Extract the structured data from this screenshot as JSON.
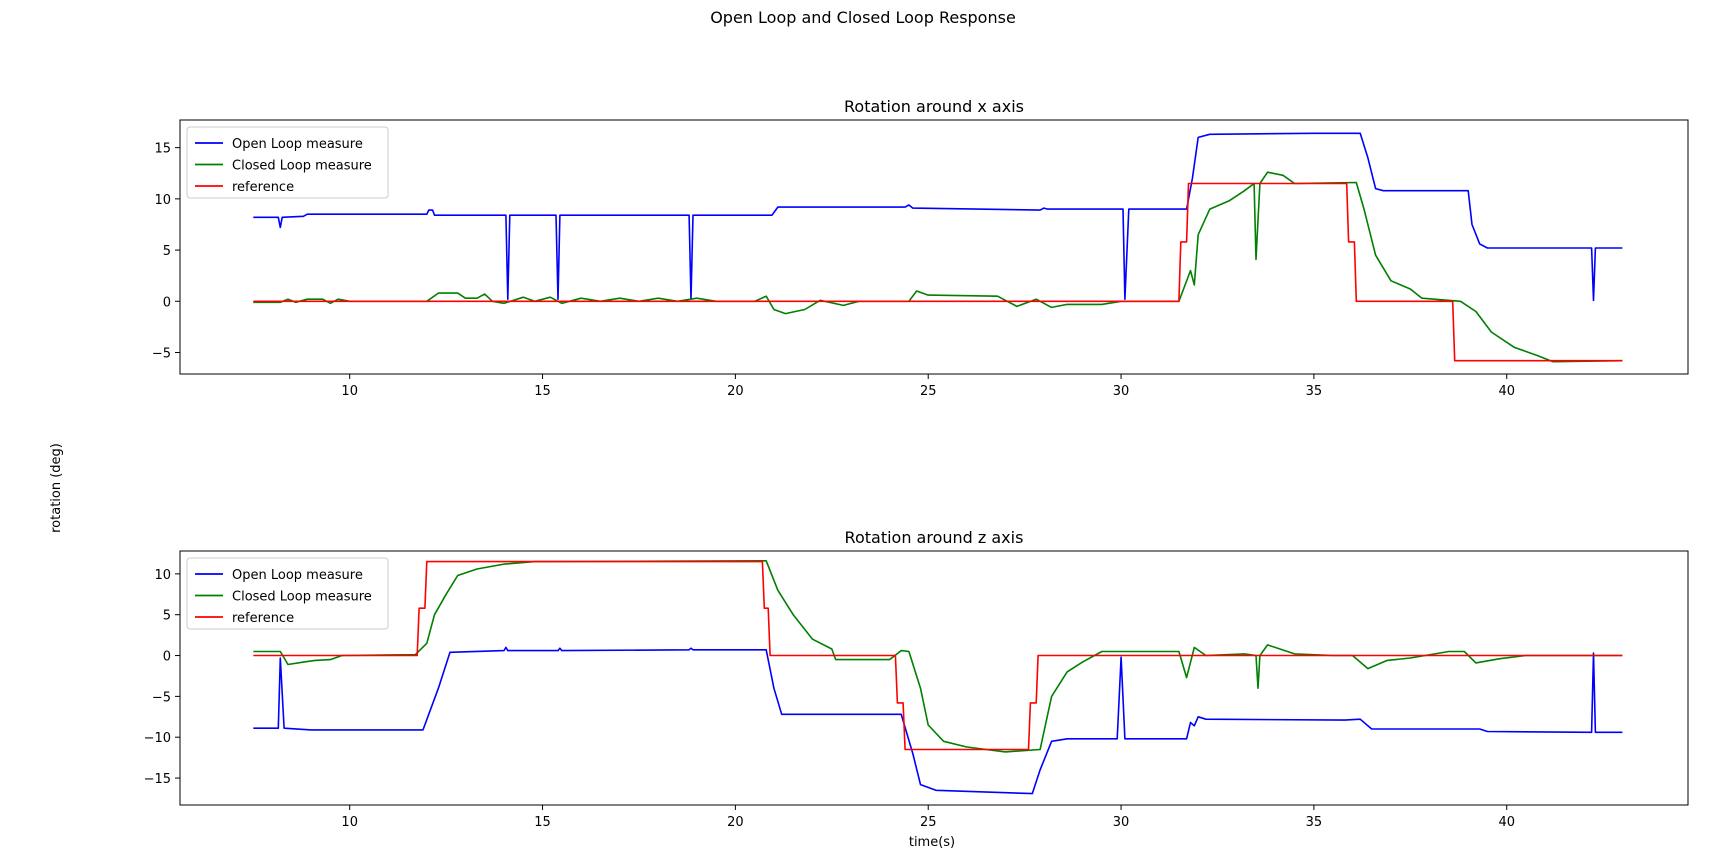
{
  "figure": {
    "suptitle": "Open Loop and Closed Loop Response",
    "shared_ylabel": "rotation (deg)",
    "shared_xlabel": "time(s)"
  },
  "legend": {
    "placement": "top-left",
    "entries": [
      {
        "label": "Open Loop measure",
        "color": "#0000ff"
      },
      {
        "label": "Closed Loop measure",
        "color": "#008000"
      },
      {
        "label": "reference",
        "color": "#ff0000"
      }
    ]
  },
  "chart_data": [
    {
      "type": "line",
      "title": "Rotation around x axis",
      "xlim": [
        5.6,
        44.7
      ],
      "ylim": [
        -7.1,
        17.7
      ],
      "xticks": [
        10,
        15,
        20,
        25,
        30,
        35,
        40
      ],
      "yticks": [
        -5,
        0,
        5,
        10,
        15
      ],
      "grid": false,
      "series": [
        {
          "name": "Open Loop measure",
          "color": "#0000ff",
          "points": [
            [
              7.5,
              8.2
            ],
            [
              8.15,
              8.2
            ],
            [
              8.2,
              7.2
            ],
            [
              8.25,
              8.2
            ],
            [
              8.8,
              8.3
            ],
            [
              8.9,
              8.5
            ],
            [
              12.0,
              8.5
            ],
            [
              12.05,
              8.9
            ],
            [
              12.15,
              8.9
            ],
            [
              12.2,
              8.4
            ],
            [
              14.05,
              8.4
            ],
            [
              14.1,
              0.2
            ],
            [
              14.15,
              8.4
            ],
            [
              15.35,
              8.4
            ],
            [
              15.4,
              0.2
            ],
            [
              15.45,
              8.4
            ],
            [
              18.8,
              8.4
            ],
            [
              18.85,
              0.2
            ],
            [
              18.9,
              8.4
            ],
            [
              20.95,
              8.4
            ],
            [
              21.1,
              9.2
            ],
            [
              24.4,
              9.2
            ],
            [
              24.5,
              9.4
            ],
            [
              24.6,
              9.1
            ],
            [
              27.9,
              8.9
            ],
            [
              28.0,
              9.1
            ],
            [
              28.1,
              9.0
            ],
            [
              30.05,
              9.0
            ],
            [
              30.1,
              0.2
            ],
            [
              30.2,
              9.0
            ],
            [
              31.7,
              9.0
            ],
            [
              31.85,
              12.0
            ],
            [
              32.0,
              16.0
            ],
            [
              32.3,
              16.3
            ],
            [
              35.0,
              16.4
            ],
            [
              36.2,
              16.4
            ],
            [
              36.4,
              14.0
            ],
            [
              36.6,
              11.0
            ],
            [
              36.8,
              10.8
            ],
            [
              39.0,
              10.8
            ],
            [
              39.1,
              7.5
            ],
            [
              39.3,
              5.6
            ],
            [
              39.5,
              5.2
            ],
            [
              42.2,
              5.2
            ],
            [
              42.25,
              0.1
            ],
            [
              42.3,
              5.2
            ],
            [
              43.0,
              5.2
            ]
          ]
        },
        {
          "name": "Closed Loop measure",
          "color": "#008000",
          "points": [
            [
              7.5,
              -0.1
            ],
            [
              8.2,
              -0.1
            ],
            [
              8.4,
              0.2
            ],
            [
              8.6,
              -0.1
            ],
            [
              8.9,
              0.2
            ],
            [
              9.3,
              0.2
            ],
            [
              9.5,
              -0.2
            ],
            [
              9.7,
              0.2
            ],
            [
              10.0,
              0.0
            ],
            [
              12.0,
              0.0
            ],
            [
              12.3,
              0.8
            ],
            [
              12.8,
              0.8
            ],
            [
              13.0,
              0.3
            ],
            [
              13.3,
              0.3
            ],
            [
              13.5,
              0.7
            ],
            [
              13.7,
              0.0
            ],
            [
              14.0,
              -0.2
            ],
            [
              14.5,
              0.4
            ],
            [
              14.8,
              0.0
            ],
            [
              15.2,
              0.4
            ],
            [
              15.5,
              -0.2
            ],
            [
              16.0,
              0.3
            ],
            [
              16.5,
              0.0
            ],
            [
              17.0,
              0.3
            ],
            [
              17.5,
              0.0
            ],
            [
              18.0,
              0.3
            ],
            [
              18.5,
              0.0
            ],
            [
              19.0,
              0.3
            ],
            [
              19.5,
              0.0
            ],
            [
              20.5,
              0.0
            ],
            [
              20.8,
              0.5
            ],
            [
              21.0,
              -0.8
            ],
            [
              21.3,
              -1.2
            ],
            [
              21.8,
              -0.8
            ],
            [
              22.2,
              0.1
            ],
            [
              22.8,
              -0.4
            ],
            [
              23.2,
              0.0
            ],
            [
              24.5,
              0.0
            ],
            [
              24.7,
              1.0
            ],
            [
              25.0,
              0.6
            ],
            [
              26.8,
              0.5
            ],
            [
              27.3,
              -0.5
            ],
            [
              27.8,
              0.2
            ],
            [
              28.2,
              -0.6
            ],
            [
              28.6,
              -0.3
            ],
            [
              29.5,
              -0.3
            ],
            [
              30.0,
              0.0
            ],
            [
              31.5,
              0.0
            ],
            [
              31.8,
              3.0
            ],
            [
              31.9,
              1.6
            ],
            [
              32.0,
              6.5
            ],
            [
              32.3,
              9.0
            ],
            [
              32.8,
              9.8
            ],
            [
              33.2,
              10.8
            ],
            [
              33.45,
              11.5
            ],
            [
              33.5,
              4.1
            ],
            [
              33.6,
              11.5
            ],
            [
              33.8,
              12.6
            ],
            [
              34.2,
              12.3
            ],
            [
              34.5,
              11.5
            ],
            [
              36.1,
              11.6
            ],
            [
              36.3,
              9.0
            ],
            [
              36.6,
              4.5
            ],
            [
              37.0,
              2.0
            ],
            [
              37.5,
              1.2
            ],
            [
              37.8,
              0.3
            ],
            [
              38.8,
              0.0
            ],
            [
              39.2,
              -1.0
            ],
            [
              39.6,
              -3.0
            ],
            [
              40.2,
              -4.5
            ],
            [
              40.8,
              -5.3
            ],
            [
              41.2,
              -5.9
            ],
            [
              43.0,
              -5.8
            ]
          ]
        },
        {
          "name": "reference",
          "color": "#ff0000",
          "points": [
            [
              7.5,
              0.0
            ],
            [
              31.5,
              0.0
            ],
            [
              31.55,
              5.8
            ],
            [
              31.7,
              5.8
            ],
            [
              31.75,
              11.5
            ],
            [
              35.85,
              11.5
            ],
            [
              35.9,
              5.8
            ],
            [
              36.05,
              5.8
            ],
            [
              36.1,
              0.0
            ],
            [
              38.6,
              0.0
            ],
            [
              38.65,
              -5.8
            ],
            [
              43.0,
              -5.8
            ]
          ]
        }
      ]
    },
    {
      "type": "line",
      "title": "Rotation around z axis",
      "xlim": [
        5.6,
        44.7
      ],
      "ylim": [
        -18.3,
        12.8
      ],
      "xticks": [
        10,
        15,
        20,
        25,
        30,
        35,
        40
      ],
      "yticks": [
        -15,
        -10,
        -5,
        0,
        5,
        10
      ],
      "grid": false,
      "series": [
        {
          "name": "Open Loop measure",
          "color": "#0000ff",
          "points": [
            [
              7.5,
              -8.9
            ],
            [
              8.15,
              -8.9
            ],
            [
              8.2,
              -0.3
            ],
            [
              8.3,
              -8.9
            ],
            [
              9.0,
              -9.1
            ],
            [
              11.9,
              -9.1
            ],
            [
              12.3,
              -4.0
            ],
            [
              12.6,
              0.4
            ],
            [
              14.0,
              0.6
            ],
            [
              14.05,
              1.0
            ],
            [
              14.1,
              0.6
            ],
            [
              15.4,
              0.6
            ],
            [
              15.45,
              0.9
            ],
            [
              15.5,
              0.6
            ],
            [
              18.8,
              0.7
            ],
            [
              18.85,
              0.9
            ],
            [
              18.9,
              0.7
            ],
            [
              20.8,
              0.7
            ],
            [
              21.0,
              -4.0
            ],
            [
              21.2,
              -7.2
            ],
            [
              24.3,
              -7.2
            ],
            [
              24.6,
              -12.0
            ],
            [
              24.8,
              -15.8
            ],
            [
              25.2,
              -16.5
            ],
            [
              27.7,
              -16.9
            ],
            [
              27.9,
              -14.0
            ],
            [
              28.2,
              -10.5
            ],
            [
              28.6,
              -10.2
            ],
            [
              29.9,
              -10.2
            ],
            [
              30.0,
              -0.2
            ],
            [
              30.1,
              -10.2
            ],
            [
              31.7,
              -10.2
            ],
            [
              31.8,
              -8.2
            ],
            [
              31.9,
              -8.6
            ],
            [
              32.0,
              -7.5
            ],
            [
              32.2,
              -7.8
            ],
            [
              35.8,
              -7.9
            ],
            [
              36.2,
              -7.8
            ],
            [
              36.5,
              -9.0
            ],
            [
              39.3,
              -9.0
            ],
            [
              39.5,
              -9.3
            ],
            [
              42.2,
              -9.4
            ],
            [
              42.25,
              0.3
            ],
            [
              42.3,
              -9.4
            ],
            [
              43.0,
              -9.4
            ]
          ]
        },
        {
          "name": "Closed Loop measure",
          "color": "#008000",
          "points": [
            [
              7.5,
              0.5
            ],
            [
              8.2,
              0.5
            ],
            [
              8.4,
              -1.1
            ],
            [
              8.8,
              -0.8
            ],
            [
              9.1,
              -0.6
            ],
            [
              9.5,
              -0.5
            ],
            [
              9.8,
              0.0
            ],
            [
              11.7,
              0.1
            ],
            [
              12.0,
              1.5
            ],
            [
              12.2,
              5.0
            ],
            [
              12.5,
              7.5
            ],
            [
              12.8,
              9.8
            ],
            [
              13.3,
              10.6
            ],
            [
              14.0,
              11.2
            ],
            [
              14.8,
              11.5
            ],
            [
              20.8,
              11.6
            ],
            [
              21.1,
              8.0
            ],
            [
              21.5,
              5.0
            ],
            [
              22.0,
              2.0
            ],
            [
              22.5,
              0.8
            ],
            [
              22.6,
              -0.5
            ],
            [
              24.0,
              -0.5
            ],
            [
              24.3,
              0.6
            ],
            [
              24.5,
              0.5
            ],
            [
              24.8,
              -4.0
            ],
            [
              25.0,
              -8.5
            ],
            [
              25.4,
              -10.5
            ],
            [
              26.0,
              -11.2
            ],
            [
              27.0,
              -11.8
            ],
            [
              27.9,
              -11.5
            ],
            [
              28.2,
              -5.0
            ],
            [
              28.6,
              -2.0
            ],
            [
              29.0,
              -0.8
            ],
            [
              29.5,
              0.5
            ],
            [
              31.5,
              0.5
            ],
            [
              31.7,
              -2.7
            ],
            [
              31.9,
              1.0
            ],
            [
              32.2,
              0.0
            ],
            [
              33.2,
              0.2
            ],
            [
              33.5,
              0.0
            ],
            [
              33.55,
              -4.0
            ],
            [
              33.6,
              0.0
            ],
            [
              33.8,
              1.3
            ],
            [
              34.5,
              0.2
            ],
            [
              35.5,
              0.0
            ],
            [
              36.0,
              0.0
            ],
            [
              36.4,
              -1.6
            ],
            [
              36.9,
              -0.6
            ],
            [
              37.5,
              -0.3
            ],
            [
              38.5,
              0.5
            ],
            [
              38.9,
              0.5
            ],
            [
              39.2,
              -0.9
            ],
            [
              39.8,
              -0.4
            ],
            [
              40.5,
              0.0
            ],
            [
              41.5,
              0.0
            ],
            [
              43.0,
              0.0
            ]
          ]
        },
        {
          "name": "reference",
          "color": "#ff0000",
          "points": [
            [
              7.5,
              0.0
            ],
            [
              11.75,
              0.0
            ],
            [
              11.8,
              5.8
            ],
            [
              11.95,
              5.8
            ],
            [
              12.0,
              11.5
            ],
            [
              20.7,
              11.5
            ],
            [
              20.75,
              5.8
            ],
            [
              20.85,
              5.8
            ],
            [
              20.9,
              0.0
            ],
            [
              24.15,
              0.0
            ],
            [
              24.2,
              -5.8
            ],
            [
              24.35,
              -5.8
            ],
            [
              24.4,
              -11.5
            ],
            [
              27.6,
              -11.5
            ],
            [
              27.65,
              -5.8
            ],
            [
              27.8,
              -5.8
            ],
            [
              27.85,
              0.0
            ],
            [
              43.0,
              0.0
            ]
          ]
        }
      ]
    }
  ]
}
